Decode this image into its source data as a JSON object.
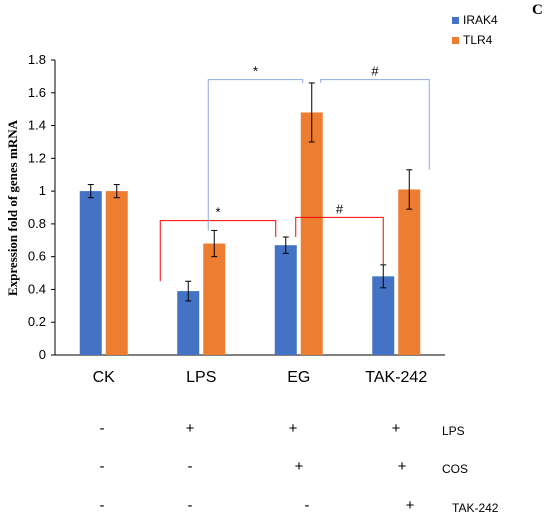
{
  "panel_letter": "C",
  "colors": {
    "IRAK4": "#4472C4",
    "TLR4": "#ED7D31",
    "bracket_red": "#FF0000",
    "bracket_blue": "#8EA9DB"
  },
  "chart_data": {
    "type": "bar",
    "categories": [
      "CK",
      "LPS",
      "EG",
      "TAK-242"
    ],
    "series": [
      {
        "name": "IRAK4",
        "values": [
          1.0,
          0.39,
          0.67,
          0.48
        ],
        "errors": [
          0.04,
          0.06,
          0.05,
          0.07
        ]
      },
      {
        "name": "TLR4",
        "values": [
          1.0,
          0.68,
          1.48,
          1.01
        ],
        "errors": [
          0.04,
          0.08,
          0.18,
          0.12
        ]
      }
    ],
    "ylabel": "Expression fold of genes mRNA",
    "ylim": [
      0,
      1.8
    ],
    "yticks": [
      "0",
      "0.2",
      "0.4",
      "0.6",
      "0.8",
      "1",
      "1.2",
      "1.4",
      "1.6",
      "1.8"
    ],
    "legend_position": "top-right",
    "annotations": {
      "red_left": "*",
      "red_right": "#",
      "blue_left": "*",
      "blue_right": "#"
    }
  },
  "treatment_table": [
    {
      "label": "LPS",
      "marks": [
        "-",
        "+",
        "+",
        "+"
      ]
    },
    {
      "label": "COS",
      "marks": [
        "-",
        "-",
        "+",
        "+"
      ]
    },
    {
      "label": "TAK-242",
      "marks": [
        "-",
        "-",
        "-",
        "+"
      ]
    }
  ]
}
